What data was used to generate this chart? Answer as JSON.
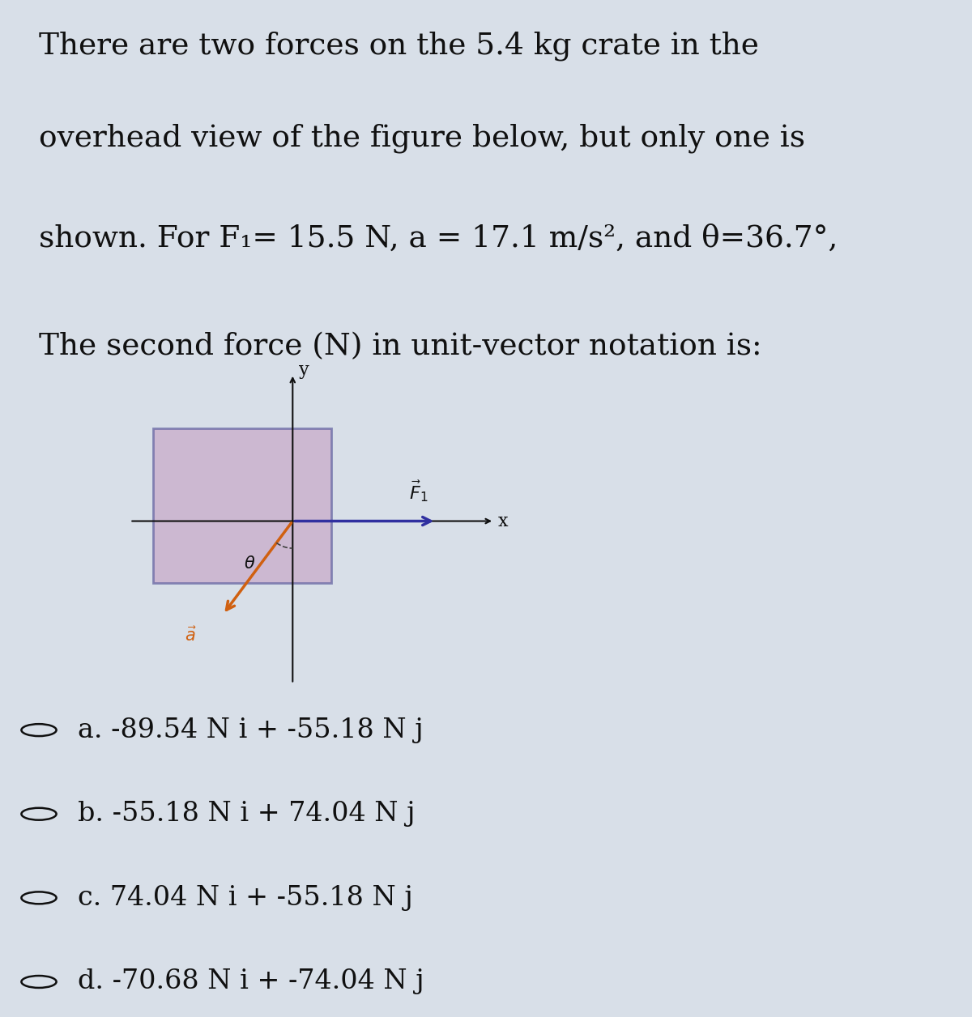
{
  "title_lines": [
    "There are two forces on the 5.4 kg crate in the",
    "overhead view of the figure below, but only one is",
    "shown. For F₁= 15.5 N, a = 17.1 m/s², and θ=36.7°,",
    "The second force (N) in unit-vector notation is:"
  ],
  "choices": [
    "a. -89.54 N i + -55.18 N j",
    "b. -55.18 N i + 74.04 N j",
    "c. 74.04 N i + -55.18 N j",
    "d. -70.68 N i + -74.04 N j"
  ],
  "bg_color": "#d8dfe8",
  "box_color": "#c8a8c8",
  "box_edge_color": "#6060a0",
  "f1_color": "#3030a0",
  "accel_color": "#d06010",
  "text_color": "#101010",
  "axis_color": "#101010",
  "dashed_color": "#404040",
  "fig_width": 12.0,
  "fig_height": 12.56
}
